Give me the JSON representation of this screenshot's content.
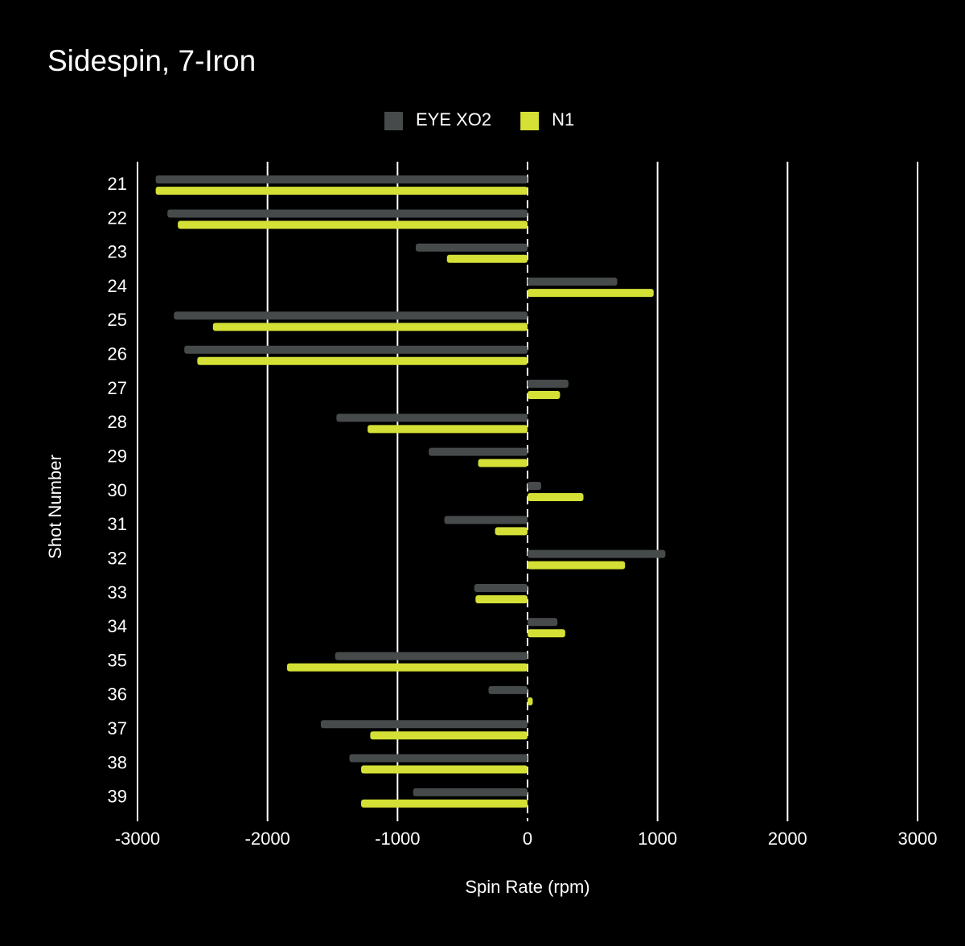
{
  "chart_data": {
    "type": "hbar",
    "title": "Sidespin, 7-Iron",
    "x_label": "Spin Rate (rpm)",
    "y_label": "Shot Number",
    "categories": [
      "21",
      "22",
      "23",
      "24",
      "25",
      "26",
      "27",
      "28",
      "29",
      "30",
      "31",
      "32",
      "33",
      "34",
      "35",
      "36",
      "37",
      "38",
      "39"
    ],
    "series": [
      {
        "name": "EYE XO2",
        "color": "#464a4a",
        "values": [
          -2860,
          -2770,
          -860,
          690,
          -2720,
          -2640,
          315,
          -1470,
          -760,
          105,
          -640,
          1060,
          -410,
          230,
          -1480,
          -300,
          -1590,
          -1370,
          -880
        ]
      },
      {
        "name": "N1",
        "color": "#d4e035",
        "values": [
          -2860,
          -2690,
          -620,
          970,
          -2420,
          -2540,
          250,
          -1230,
          -380,
          430,
          -250,
          750,
          -400,
          290,
          -1850,
          40,
          -1210,
          -1280,
          -1280
        ]
      }
    ],
    "xlim": [
      -3000,
      3000
    ],
    "xticks": [
      -3000,
      -2000,
      -1000,
      0,
      1000,
      2000,
      3000
    ],
    "grid": true,
    "legend": "top"
  }
}
